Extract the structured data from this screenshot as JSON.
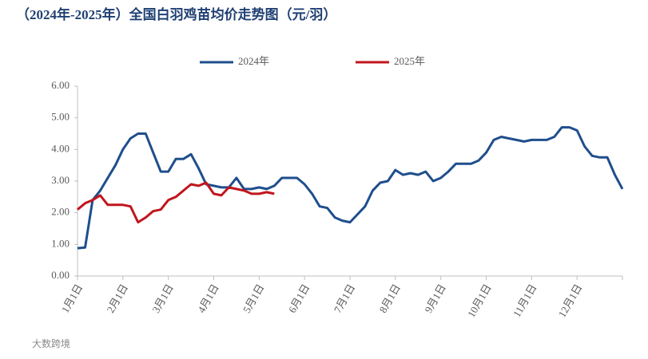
{
  "chart_data": {
    "type": "line",
    "title": "（2024年-2025年）全国白羽鸡苗均价走势图（元/羽）",
    "footer": "大数跨境",
    "categories": [
      "1月1日",
      null,
      null,
      null,
      null,
      null,
      "2月1日",
      null,
      null,
      null,
      null,
      null,
      "3月1日",
      null,
      null,
      null,
      null,
      null,
      "4月1日",
      null,
      null,
      null,
      null,
      null,
      "5月1日",
      null,
      null,
      null,
      null,
      null,
      "6月1日",
      null,
      null,
      null,
      null,
      null,
      "7月1日",
      null,
      null,
      null,
      null,
      null,
      "8月1日",
      null,
      null,
      null,
      null,
      null,
      "9月1日",
      null,
      null,
      null,
      null,
      null,
      "10月1日",
      null,
      null,
      null,
      null,
      null,
      "11月1日",
      null,
      null,
      null,
      null,
      null,
      "12月1日",
      null,
      null,
      null,
      null,
      null,
      null
    ],
    "series": [
      {
        "name": "2024年",
        "color": "#1f4e8c",
        "values": [
          0.88,
          0.9,
          2.4,
          2.7,
          3.1,
          3.5,
          4.0,
          4.35,
          4.5,
          4.5,
          3.9,
          3.3,
          3.3,
          3.7,
          3.7,
          3.85,
          3.4,
          2.9,
          2.85,
          2.8,
          2.8,
          3.1,
          2.75,
          2.75,
          2.8,
          2.75,
          2.85,
          3.1,
          3.1,
          3.1,
          2.9,
          2.6,
          2.2,
          2.15,
          1.85,
          1.75,
          1.7,
          1.95,
          2.2,
          2.7,
          2.95,
          3.0,
          3.35,
          3.2,
          3.25,
          3.2,
          3.3,
          3.0,
          3.1,
          3.3,
          3.55,
          3.55,
          3.55,
          3.65,
          3.9,
          4.3,
          4.4,
          4.35,
          4.3,
          4.25,
          4.3,
          4.3,
          4.3,
          4.4,
          4.7,
          4.7,
          4.6,
          4.1,
          3.8,
          3.75,
          3.75,
          3.2,
          2.75
        ]
      },
      {
        "name": "2025年",
        "color": "#c0161e",
        "values": [
          2.1,
          2.3,
          2.4,
          2.55,
          2.25,
          2.25,
          2.25,
          2.2,
          1.7,
          1.85,
          2.05,
          2.1,
          2.4,
          2.5,
          2.7,
          2.9,
          2.85,
          2.95,
          2.6,
          2.55,
          2.8,
          2.75,
          2.7,
          2.6,
          2.6,
          2.65,
          2.6,
          null,
          null,
          null,
          null,
          null,
          null,
          null,
          null,
          null,
          null,
          null,
          null,
          null,
          null,
          null,
          null,
          null,
          null,
          null,
          null,
          null,
          null,
          null,
          null,
          null,
          null,
          null,
          null,
          null,
          null,
          null,
          null,
          null,
          null,
          null,
          null,
          null,
          null,
          null,
          null,
          null,
          null,
          null,
          null,
          null,
          null
        ]
      }
    ],
    "ylim": [
      0,
      6
    ],
    "yticks": [
      {
        "value": 0,
        "label": "0.00"
      },
      {
        "value": 1,
        "label": "1.00"
      },
      {
        "value": 2,
        "label": "2.00"
      },
      {
        "value": 3,
        "label": "3.00"
      },
      {
        "value": 4,
        "label": "4.00"
      },
      {
        "value": 5,
        "label": "5.00"
      },
      {
        "value": 6,
        "label": "6.00"
      }
    ],
    "grid": false,
    "legend": "top"
  }
}
